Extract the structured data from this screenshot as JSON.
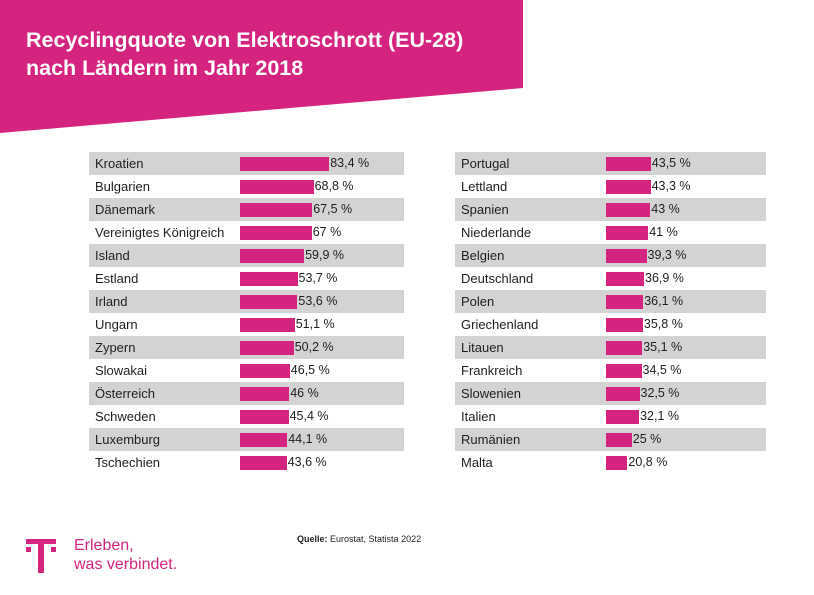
{
  "header": {
    "title_line1": "Recyclingquote von Elektroschrott (EU-28)",
    "title_line2": "nach Ländern im Jahr 2018"
  },
  "colors": {
    "accent": "#d4247f",
    "row_shade": "#d3d3d3"
  },
  "chart_data": {
    "type": "bar",
    "orientation": "horizontal",
    "title": "Recyclingquote von Elektroschrott (EU-28) nach Ländern im Jahr 2018",
    "unit": "%",
    "columns": [
      {
        "rows": [
          {
            "label": "Kroatien",
            "value": 83.4,
            "display": "83,4 %"
          },
          {
            "label": "Bulgarien",
            "value": 68.8,
            "display": "68,8 %"
          },
          {
            "label": "Dänemark",
            "value": 67.5,
            "display": "67,5 %"
          },
          {
            "label": "Vereinigtes Königreich",
            "value": 67,
            "display": "67 %"
          },
          {
            "label": "Island",
            "value": 59.9,
            "display": "59,9 %"
          },
          {
            "label": "Estland",
            "value": 53.7,
            "display": "53,7 %"
          },
          {
            "label": "Irland",
            "value": 53.6,
            "display": "53,6 %"
          },
          {
            "label": "Ungarn",
            "value": 51.1,
            "display": "51,1 %"
          },
          {
            "label": "Zypern",
            "value": 50.2,
            "display": "50,2 %"
          },
          {
            "label": "Slowakai",
            "value": 46.5,
            "display": "46,5 %"
          },
          {
            "label": "Österreich",
            "value": 46,
            "display": "46 %"
          },
          {
            "label": "Schweden",
            "value": 45.4,
            "display": "45,4 %"
          },
          {
            "label": "Luxemburg",
            "value": 44.1,
            "display": "44,1 %"
          },
          {
            "label": "Tschechien",
            "value": 43.6,
            "display": "43,6 %"
          }
        ]
      },
      {
        "rows": [
          {
            "label": "Portugal",
            "value": 43.5,
            "display": "43,5 %"
          },
          {
            "label": "Lettland",
            "value": 43.3,
            "display": "43,3 %"
          },
          {
            "label": "Spanien",
            "value": 43,
            "display": "43 %"
          },
          {
            "label": "Niederlande",
            "value": 41,
            "display": "41 %"
          },
          {
            "label": "Belgien",
            "value": 39.3,
            "display": "39,3 %"
          },
          {
            "label": "Deutschland",
            "value": 36.9,
            "display": "36,9 %"
          },
          {
            "label": "Polen",
            "value": 36.1,
            "display": "36,1 %"
          },
          {
            "label": "Griechenland",
            "value": 35.8,
            "display": "35,8 %"
          },
          {
            "label": "Litauen",
            "value": 35.1,
            "display": "35,1 %"
          },
          {
            "label": "Frankreich",
            "value": 34.5,
            "display": "34,5 %"
          },
          {
            "label": "Slowenien",
            "value": 32.5,
            "display": "32,5 %"
          },
          {
            "label": "Italien",
            "value": 32.1,
            "display": "32,1 %"
          },
          {
            "label": "Rumänien",
            "value": 25,
            "display": "25 %"
          },
          {
            "label": "Malta",
            "value": 20.8,
            "display": "20,8 %"
          }
        ]
      }
    ]
  },
  "source": {
    "label": "Quelle:",
    "text": "Eurostat, Statista 2022"
  },
  "brand": {
    "logo_icon": "telekom-t-icon",
    "slogan_line1": "Erleben,",
    "slogan_line2": "was verbindet."
  }
}
